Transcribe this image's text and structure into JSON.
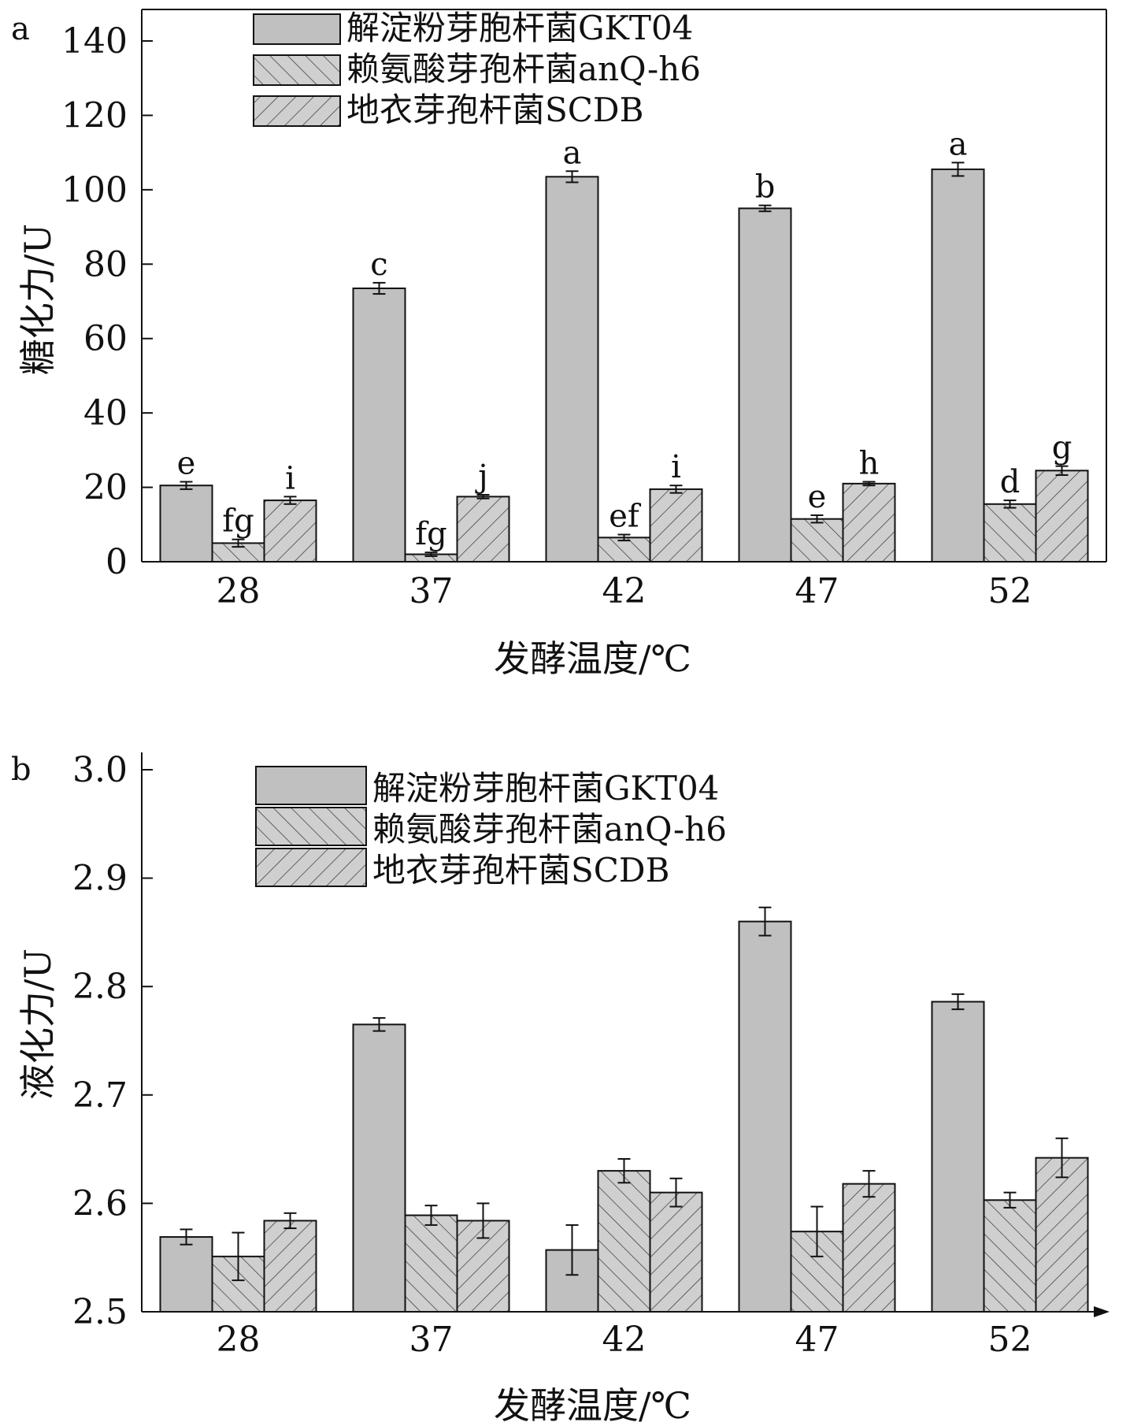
{
  "chart_data": [
    {
      "panel_label": "a",
      "type": "bar",
      "xlabel": "发酵温度/℃",
      "ylabel": "糖化力/U",
      "ylim": [
        0,
        140
      ],
      "yticks": [
        0,
        20,
        40,
        60,
        80,
        100,
        120,
        140
      ],
      "categories": [
        "28",
        "37",
        "42",
        "47",
        "52"
      ],
      "legend_position": "top-center",
      "grid": false,
      "series": [
        {
          "name": "解淀粉芽胞杆菌GKT04",
          "fill": "solid",
          "values": [
            20.5,
            73.5,
            103.5,
            95,
            105.5
          ],
          "errors": [
            1,
            1.5,
            1.5,
            0.8,
            1.8
          ],
          "labels": [
            "e",
            "c",
            "a",
            "b",
            "a"
          ]
        },
        {
          "name": "赖氨酸芽孢杆菌anQ-h6",
          "fill": "hatch-right",
          "values": [
            5,
            2,
            6.5,
            11.5,
            15.5
          ],
          "errors": [
            1,
            0.5,
            0.8,
            1,
            1
          ],
          "labels": [
            "fg",
            "fg",
            "ef",
            "e",
            "d"
          ]
        },
        {
          "name": "地衣芽孢杆菌SCDB",
          "fill": "hatch-left",
          "values": [
            16.5,
            17.5,
            19.5,
            21,
            24.5
          ],
          "errors": [
            1,
            0.5,
            1,
            0.5,
            1.2
          ],
          "labels": [
            "i",
            "j",
            "i",
            "h",
            "g"
          ]
        }
      ]
    },
    {
      "panel_label": "b",
      "type": "bar",
      "xlabel": "发酵温度/℃",
      "ylabel": "液化力/U",
      "ylim": [
        2.5,
        3.0
      ],
      "yticks": [
        2.5,
        2.6,
        2.7,
        2.8,
        2.9,
        3.0
      ],
      "categories": [
        "28",
        "37",
        "42",
        "47",
        "52"
      ],
      "legend_position": "top-center",
      "grid": false,
      "series": [
        {
          "name": "解淀粉芽胞杆菌GKT04",
          "fill": "solid",
          "values": [
            2.569,
            2.765,
            2.557,
            2.86,
            2.786
          ],
          "errors": [
            0.007,
            0.006,
            0.023,
            0.013,
            0.007
          ]
        },
        {
          "name": "赖氨酸芽孢杆菌anQ-h6",
          "fill": "hatch-right",
          "values": [
            2.551,
            2.589,
            2.63,
            2.574,
            2.603
          ],
          "errors": [
            0.022,
            0.009,
            0.011,
            0.023,
            0.007
          ]
        },
        {
          "name": "地衣芽孢杆菌SCDB",
          "fill": "hatch-left",
          "values": [
            2.584,
            2.584,
            2.61,
            2.618,
            2.642
          ],
          "errors": [
            0.007,
            0.016,
            0.013,
            0.012,
            0.018
          ]
        }
      ]
    }
  ]
}
